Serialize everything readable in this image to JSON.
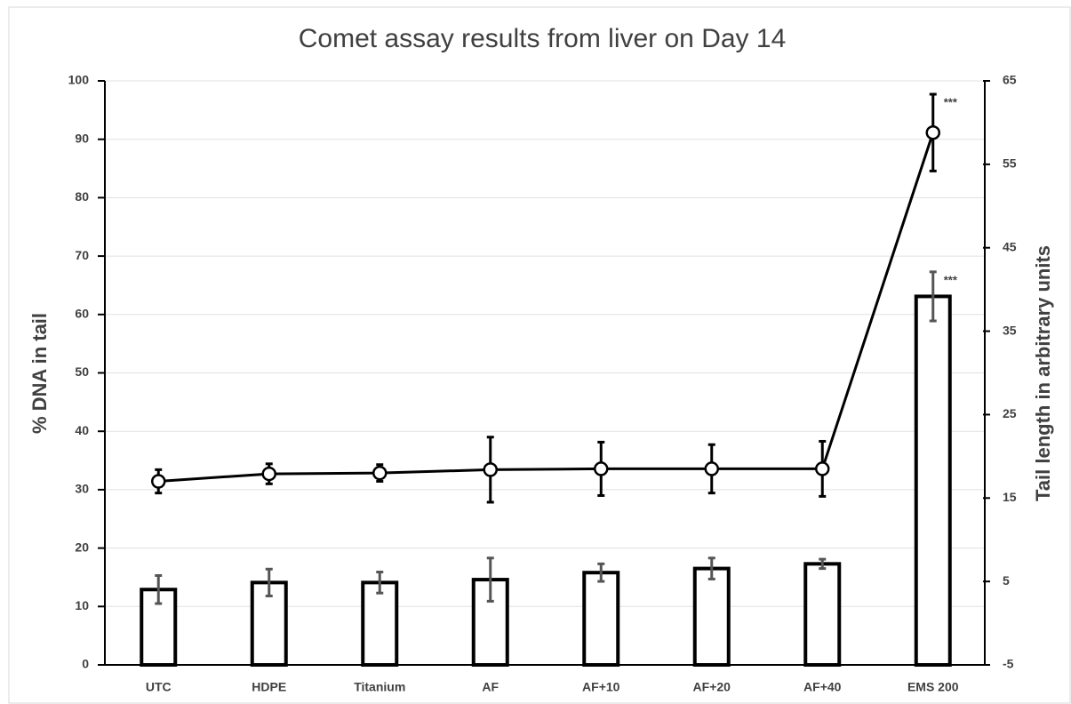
{
  "chart_data": {
    "type": "bar",
    "title": "Comet assay results from liver on Day 14",
    "ylabel": "% DNA in tail",
    "y2label": "Tail length in arbitrary units",
    "categories": [
      "UTC",
      "HDPE",
      "Titanium",
      "AF",
      "AF+10",
      "AF+20",
      "AF+40",
      "EMS 200"
    ],
    "series": [
      {
        "type": "bar",
        "color": "#ffffff",
        "stroke": "#000000",
        "error_color": "#555555",
        "values": [
          12.9,
          14.1,
          14.1,
          14.6,
          15.8,
          16.5,
          17.3,
          63.1
        ],
        "errors": [
          2.4,
          2.3,
          1.8,
          3.7,
          1.5,
          1.8,
          0.8,
          4.2
        ],
        "annotations": [
          null,
          null,
          null,
          null,
          null,
          null,
          null,
          "***"
        ]
      },
      {
        "type": "line",
        "axis": "y2",
        "color": "#000000",
        "error_color": "#000000",
        "values": [
          17.0,
          17.9,
          18.0,
          18.4,
          18.5,
          18.5,
          18.5,
          58.8
        ],
        "errors": [
          1.4,
          1.2,
          1.0,
          3.9,
          3.2,
          2.9,
          3.3,
          4.6
        ],
        "annotations": [
          null,
          null,
          null,
          null,
          null,
          null,
          null,
          "***"
        ]
      }
    ],
    "ylim": [
      0,
      100
    ],
    "yticks": [
      0,
      10,
      20,
      30,
      40,
      50,
      60,
      70,
      80,
      90,
      100
    ],
    "y2lim": [
      -5,
      65
    ],
    "y2ticks": [
      -5,
      5,
      15,
      25,
      35,
      45,
      55,
      65
    ],
    "grid": true
  }
}
